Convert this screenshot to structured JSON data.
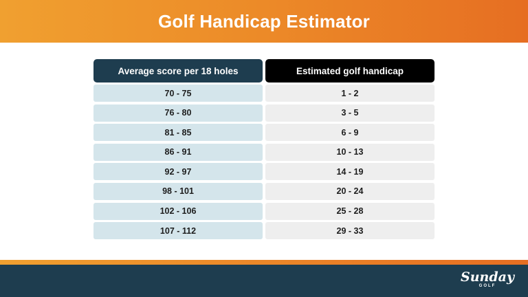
{
  "header": {
    "title": "Golf Handicap Estimator"
  },
  "table": {
    "headers": [
      "Average score per 18 holes",
      "Estimated golf handicap"
    ],
    "rows": [
      [
        "70 - 75",
        "1 - 2"
      ],
      [
        "76 - 80",
        "3 - 5"
      ],
      [
        "81 - 85",
        "6 - 9"
      ],
      [
        "86 - 91",
        "10 - 13"
      ],
      [
        "92 - 97",
        "14 - 19"
      ],
      [
        "98 - 101",
        "20 - 24"
      ],
      [
        "102 - 106",
        "25 - 28"
      ],
      [
        "107 - 112",
        "29 - 33"
      ]
    ]
  },
  "footer": {
    "logo": "Sunday",
    "logo_sub": "GOLF"
  }
}
